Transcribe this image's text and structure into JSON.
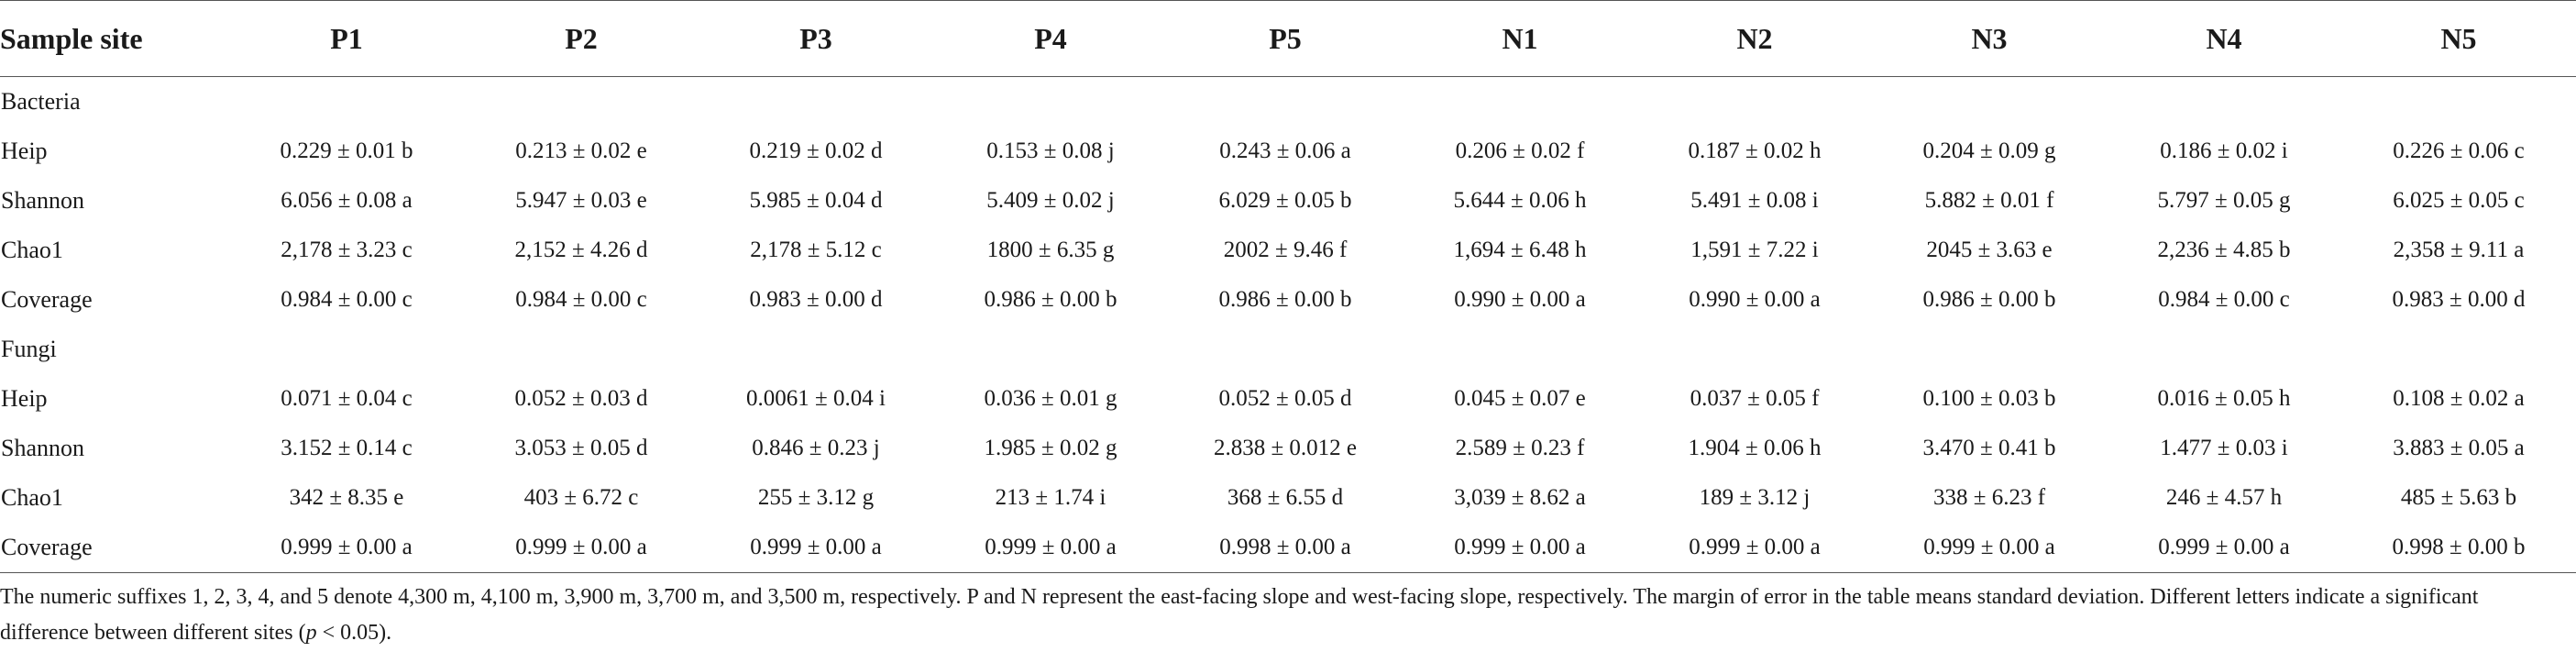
{
  "table": {
    "columns": [
      "Sample site",
      "P1",
      "P2",
      "P3",
      "P4",
      "P5",
      "N1",
      "N2",
      "N3",
      "N4",
      "N5"
    ],
    "groups": [
      {
        "name": "Bacteria",
        "rows": [
          {
            "metric": "Heip",
            "values": [
              "0.229 ± 0.01 b",
              "0.213 ± 0.02 e",
              "0.219 ± 0.02 d",
              "0.153 ± 0.08 j",
              "0.243 ± 0.06 a",
              "0.206 ± 0.02 f",
              "0.187 ± 0.02 h",
              "0.204 ± 0.09 g",
              "0.186 ± 0.02 i",
              "0.226 ± 0.06 c"
            ]
          },
          {
            "metric": "Shannon",
            "values": [
              "6.056 ± 0.08 a",
              "5.947 ± 0.03 e",
              "5.985 ± 0.04 d",
              "5.409 ± 0.02 j",
              "6.029 ± 0.05 b",
              "5.644 ± 0.06 h",
              "5.491 ± 0.08 i",
              "5.882 ± 0.01 f",
              "5.797 ± 0.05 g",
              "6.025 ± 0.05 c"
            ]
          },
          {
            "metric": "Chao1",
            "values": [
              "2,178 ± 3.23 c",
              "2,152 ± 4.26 d",
              "2,178 ± 5.12 c",
              "1800 ± 6.35 g",
              "2002 ± 9.46 f",
              "1,694 ± 6.48 h",
              "1,591 ± 7.22 i",
              "2045 ± 3.63 e",
              "2,236 ± 4.85 b",
              "2,358 ± 9.11 a"
            ]
          },
          {
            "metric": "Coverage",
            "values": [
              "0.984 ± 0.00 c",
              "0.984 ± 0.00 c",
              "0.983 ± 0.00 d",
              "0.986 ± 0.00 b",
              "0.986 ± 0.00 b",
              "0.990 ± 0.00 a",
              "0.990 ± 0.00 a",
              "0.986 ± 0.00 b",
              "0.984 ± 0.00 c",
              "0.983 ± 0.00 d"
            ]
          }
        ]
      },
      {
        "name": "Fungi",
        "rows": [
          {
            "metric": "Heip",
            "values": [
              "0.071 ± 0.04 c",
              "0.052 ± 0.03 d",
              "0.0061 ± 0.04 i",
              "0.036 ± 0.01 g",
              "0.052 ± 0.05 d",
              "0.045 ± 0.07 e",
              "0.037 ± 0.05 f",
              "0.100 ± 0.03 b",
              "0.016 ± 0.05 h",
              "0.108 ± 0.02 a"
            ]
          },
          {
            "metric": "Shannon",
            "values": [
              "3.152 ± 0.14 c",
              "3.053 ± 0.05 d",
              "0.846 ± 0.23 j",
              "1.985 ± 0.02 g",
              "2.838 ± 0.012 e",
              "2.589 ± 0.23 f",
              "1.904 ± 0.06 h",
              "3.470 ± 0.41 b",
              "1.477 ± 0.03 i",
              "3.883 ± 0.05 a"
            ]
          },
          {
            "metric": "Chao1",
            "values": [
              "342 ± 8.35 e",
              "403 ± 6.72 c",
              "255 ± 3.12 g",
              "213 ± 1.74 i",
              "368 ± 6.55 d",
              "3,039 ± 8.62 a",
              "189 ± 3.12 j",
              "338 ± 6.23 f",
              "246 ± 4.57 h",
              "485 ± 5.63 b"
            ]
          },
          {
            "metric": "Coverage",
            "values": [
              "0.999 ± 0.00 a",
              "0.999 ± 0.00 a",
              "0.999 ± 0.00 a",
              "0.999 ± 0.00 a",
              "0.998 ± 0.00 a",
              "0.999 ± 0.00 a",
              "0.999 ± 0.00 a",
              "0.999 ± 0.00 a",
              "0.999 ± 0.00 a",
              "0.998 ± 0.00 b"
            ]
          }
        ]
      }
    ]
  },
  "note": {
    "text_before": "The numeric suffixes 1, 2, 3, 4, and 5 denote 4,300 m, 4,100 m, 3,900 m, 3,700 m, and 3,500 m, respectively. P and N represent the east-facing slope and west-facing slope, respectively. The margin of error in the table means standard deviation. Different letters indicate a significant difference between different sites (",
    "p_symbol": "p",
    "text_after": " < 0.05)."
  }
}
